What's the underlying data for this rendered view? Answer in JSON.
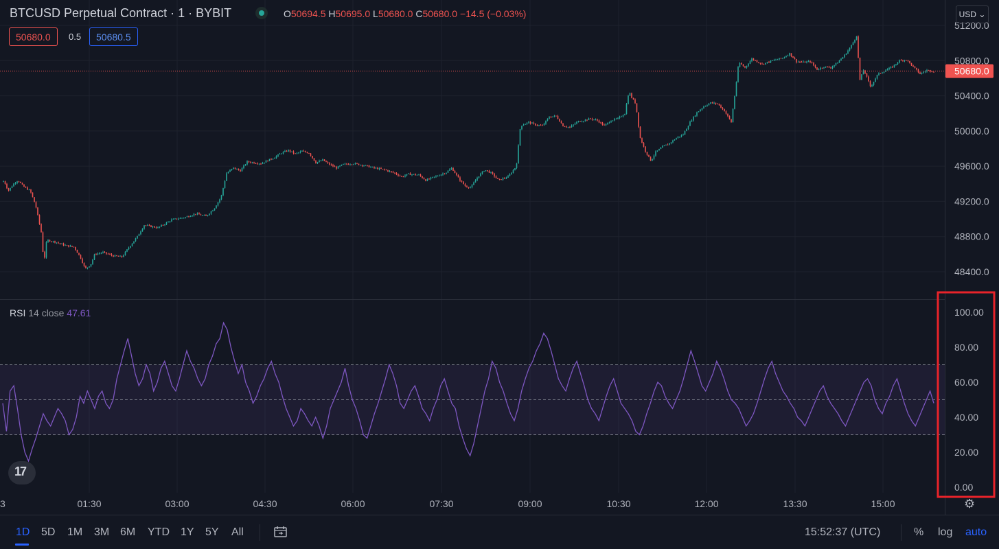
{
  "header": {
    "title": "BTCUSD Perpetual Contract · 1 · BYBIT",
    "ohlc": {
      "o": "50694.5",
      "h": "50695.0",
      "l": "50680.0",
      "c": "50680.0",
      "change": "−14.5 (−0.03%)"
    },
    "bid_price": "50680.0",
    "spread": "0.5",
    "ask_price": "50680.5",
    "currency_button": "USD"
  },
  "price_axis": {
    "ticks": [
      "51200.0",
      "50800.0",
      "50400.0",
      "50000.0",
      "49600.0",
      "49200.0",
      "48800.0",
      "48400.0"
    ],
    "current_label": "50680.0"
  },
  "rsi": {
    "name": "RSI",
    "params": "14 close",
    "value": "47.61",
    "ticks": [
      "100.00",
      "80.00",
      "60.00",
      "40.00",
      "20.00",
      "0.00"
    ]
  },
  "time_axis": {
    "first_partial": "3",
    "labels": [
      "01:30",
      "03:00",
      "04:30",
      "06:00",
      "07:30",
      "09:00",
      "10:30",
      "12:00",
      "13:30",
      "15:00"
    ]
  },
  "timeframes": [
    "1D",
    "5D",
    "1M",
    "3M",
    "6M",
    "YTD",
    "1Y",
    "5Y",
    "All"
  ],
  "clock": "15:52:37 (UTC)",
  "scale_options": {
    "percent": "%",
    "log": "log",
    "auto": "auto"
  },
  "colors": {
    "background": "#131722",
    "up": "#26a69a",
    "down": "#ef5350",
    "rsi_line": "#7e57c2",
    "accent": "#2962ff",
    "highlight_box": "#e8232a"
  },
  "chart_data": [
    {
      "type": "candlestick",
      "series": [
        {
          "name": "BTCUSD",
          "close_path": [
            [
              0,
              49420
            ],
            [
              6,
              49430
            ],
            [
              12,
              49320
            ],
            [
              20,
              49400
            ],
            [
              26,
              49440
            ],
            [
              34,
              49370
            ],
            [
              44,
              49320
            ],
            [
              52,
              49150
            ],
            [
              60,
              48850
            ],
            [
              64,
              48500
            ],
            [
              68,
              48760
            ],
            [
              80,
              48740
            ],
            [
              95,
              48700
            ],
            [
              108,
              48680
            ],
            [
              118,
              48550
            ],
            [
              124,
              48430
            ],
            [
              132,
              48480
            ],
            [
              138,
              48600
            ],
            [
              150,
              48620
            ],
            [
              165,
              48580
            ],
            [
              178,
              48570
            ],
            [
              186,
              48660
            ],
            [
              200,
              48800
            ],
            [
              210,
              48930
            ],
            [
              230,
              48900
            ],
            [
              250,
              48990
            ],
            [
              270,
              49020
            ],
            [
              285,
              49060
            ],
            [
              300,
              49030
            ],
            [
              312,
              49120
            ],
            [
              322,
              49250
            ],
            [
              330,
              49520
            ],
            [
              340,
              49580
            ],
            [
              350,
              49550
            ],
            [
              360,
              49650
            ],
            [
              380,
              49630
            ],
            [
              400,
              49700
            ],
            [
              410,
              49750
            ],
            [
              420,
              49780
            ],
            [
              430,
              49740
            ],
            [
              440,
              49770
            ],
            [
              450,
              49750
            ],
            [
              460,
              49640
            ],
            [
              470,
              49670
            ],
            [
              480,
              49620
            ],
            [
              490,
              49580
            ],
            [
              500,
              49620
            ],
            [
              515,
              49630
            ],
            [
              530,
              49610
            ],
            [
              545,
              49580
            ],
            [
              560,
              49560
            ],
            [
              575,
              49520
            ],
            [
              585,
              49480
            ],
            [
              595,
              49510
            ],
            [
              610,
              49500
            ],
            [
              620,
              49440
            ],
            [
              630,
              49470
            ],
            [
              640,
              49500
            ],
            [
              650,
              49530
            ],
            [
              658,
              49580
            ],
            [
              668,
              49460
            ],
            [
              678,
              49370
            ],
            [
              686,
              49360
            ],
            [
              696,
              49480
            ],
            [
              706,
              49560
            ],
            [
              716,
              49520
            ],
            [
              726,
              49440
            ],
            [
              740,
              49480
            ],
            [
              752,
              49600
            ],
            [
              758,
              50060
            ],
            [
              770,
              50100
            ],
            [
              780,
              50070
            ],
            [
              790,
              50060
            ],
            [
              800,
              50160
            ],
            [
              810,
              50170
            ],
            [
              820,
              50060
            ],
            [
              830,
              50040
            ],
            [
              840,
              50100
            ],
            [
              850,
              50120
            ],
            [
              860,
              50140
            ],
            [
              870,
              50120
            ],
            [
              880,
              50060
            ],
            [
              890,
              50120
            ],
            [
              900,
              50140
            ],
            [
              910,
              50200
            ],
            [
              916,
              50450
            ],
            [
              920,
              50380
            ],
            [
              926,
              50310
            ],
            [
              932,
              49930
            ],
            [
              940,
              49770
            ],
            [
              948,
              49660
            ],
            [
              955,
              49760
            ],
            [
              965,
              49820
            ],
            [
              975,
              49860
            ],
            [
              985,
              49920
            ],
            [
              995,
              49960
            ],
            [
              1005,
              50100
            ],
            [
              1015,
              50210
            ],
            [
              1025,
              50280
            ],
            [
              1035,
              50320
            ],
            [
              1045,
              50310
            ],
            [
              1055,
              50230
            ],
            [
              1065,
              50100
            ],
            [
              1070,
              50400
            ],
            [
              1076,
              50780
            ],
            [
              1085,
              50720
            ],
            [
              1095,
              50820
            ],
            [
              1110,
              50760
            ],
            [
              1125,
              50800
            ],
            [
              1140,
              50830
            ],
            [
              1150,
              50880
            ],
            [
              1160,
              50790
            ],
            [
              1170,
              50780
            ],
            [
              1180,
              50790
            ],
            [
              1190,
              50700
            ],
            [
              1200,
              50730
            ],
            [
              1210,
              50720
            ],
            [
              1220,
              50780
            ],
            [
              1230,
              50860
            ],
            [
              1240,
              50970
            ],
            [
              1248,
              51090
            ],
            [
              1252,
              50570
            ],
            [
              1258,
              50700
            ],
            [
              1268,
              50500
            ],
            [
              1278,
              50640
            ],
            [
              1290,
              50690
            ],
            [
              1300,
              50730
            ],
            [
              1310,
              50800
            ],
            [
              1320,
              50810
            ],
            [
              1330,
              50730
            ],
            [
              1340,
              50650
            ],
            [
              1350,
              50690
            ],
            [
              1360,
              50680
            ]
          ]
        }
      ],
      "ylim": [
        48300,
        51260
      ],
      "yticks": [
        51200,
        50800,
        50400,
        50000,
        49600,
        49200,
        48800,
        48400
      ]
    },
    {
      "type": "line",
      "series": [
        {
          "name": "RSI",
          "values": [
            48,
            32,
            55,
            58,
            45,
            30,
            20,
            15,
            22,
            28,
            35,
            42,
            38,
            35,
            40,
            45,
            42,
            38,
            30,
            33,
            40,
            52,
            48,
            55,
            50,
            45,
            52,
            55,
            48,
            45,
            50,
            62,
            70,
            78,
            85,
            75,
            65,
            58,
            62,
            70,
            65,
            55,
            60,
            68,
            72,
            65,
            58,
            55,
            62,
            70,
            78,
            72,
            68,
            62,
            58,
            62,
            70,
            75,
            82,
            85,
            94,
            90,
            80,
            72,
            65,
            70,
            60,
            55,
            48,
            52,
            58,
            62,
            68,
            72,
            65,
            60,
            52,
            45,
            40,
            35,
            38,
            45,
            42,
            38,
            35,
            40,
            35,
            28,
            35,
            45,
            50,
            55,
            60,
            68,
            58,
            50,
            45,
            38,
            30,
            28,
            35,
            42,
            48,
            55,
            62,
            70,
            65,
            58,
            48,
            45,
            50,
            55,
            58,
            52,
            45,
            42,
            38,
            45,
            50,
            58,
            62,
            55,
            48,
            45,
            35,
            28,
            22,
            18,
            25,
            35,
            45,
            55,
            62,
            72,
            68,
            60,
            55,
            48,
            42,
            38,
            45,
            55,
            62,
            68,
            72,
            78,
            82,
            88,
            85,
            78,
            70,
            62,
            58,
            55,
            62,
            68,
            72,
            65,
            58,
            50,
            45,
            42,
            38,
            45,
            52,
            58,
            62,
            55,
            48,
            45,
            42,
            38,
            32,
            30,
            35,
            42,
            48,
            55,
            60,
            58,
            52,
            48,
            45,
            50,
            55,
            62,
            70,
            78,
            72,
            65,
            58,
            55,
            60,
            65,
            72,
            68,
            62,
            55,
            50,
            48,
            45,
            40,
            35,
            38,
            42,
            48,
            55,
            62,
            68,
            72,
            65,
            60,
            55,
            52,
            48,
            45,
            40,
            38,
            35,
            40,
            45,
            50,
            55,
            58,
            52,
            48,
            45,
            42,
            38,
            35,
            40,
            45,
            50,
            55,
            60,
            62,
            58,
            50,
            45,
            42,
            48,
            52,
            58,
            62,
            55,
            48,
            42,
            38,
            35,
            40,
            45,
            50,
            55,
            48
          ]
        }
      ],
      "ylim": [
        0,
        100
      ],
      "yticks": [
        100,
        80,
        60,
        40,
        20,
        0
      ],
      "bands": [
        30,
        50,
        70
      ]
    }
  ]
}
